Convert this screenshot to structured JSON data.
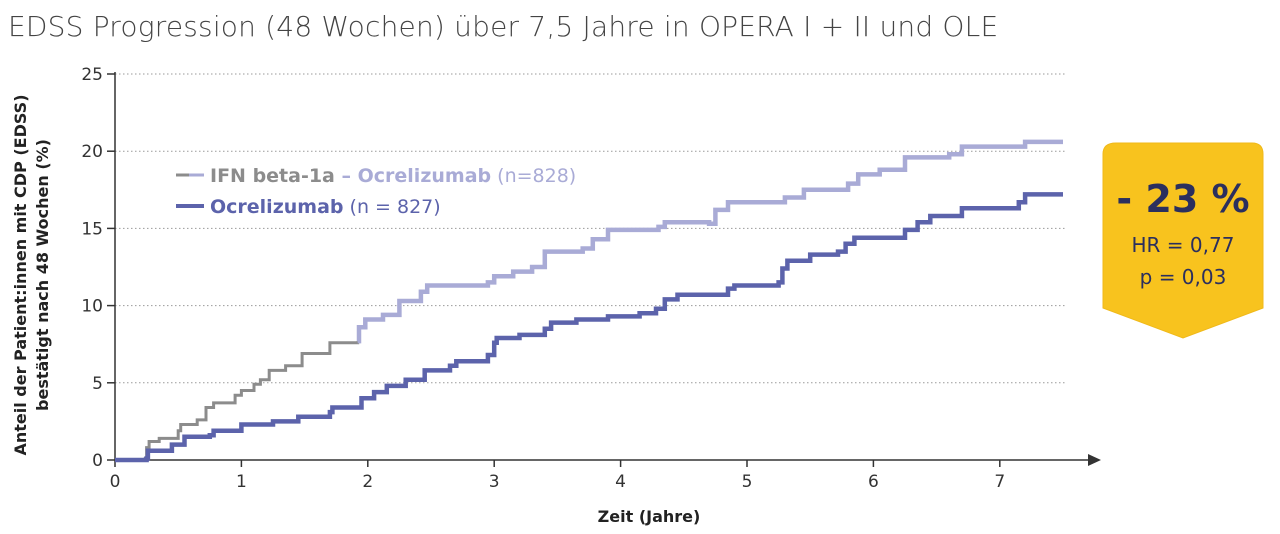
{
  "title": "EDSS Progression (48 Wochen) über 7,5 Jahre in OPERA I + II und OLE",
  "colors": {
    "ifn": "#8c8c8c",
    "ocrelizumab_switch": "#a9abd6",
    "ocrelizumab": "#5c63ab",
    "badge": "#f8c31e",
    "badge_text": "#2b2f5e",
    "grid": "#9a9a9a"
  },
  "legend": {
    "items": [
      {
        "parts": [
          {
            "text": "IFN beta-1a",
            "color": "#8c8c8c",
            "bold": true
          },
          {
            "text": " – Ocrelizumab",
            "color": "#a9abd6",
            "bold": true
          },
          {
            "text": " (n=828)",
            "color": "#a9abd6",
            "bold": false
          }
        ],
        "line_colors": [
          "#8c8c8c",
          "#a9abd6"
        ]
      },
      {
        "parts": [
          {
            "text": "Ocrelizumab",
            "color": "#5c63ab",
            "bold": true
          },
          {
            "text": " (n = 827)",
            "color": "#5c63ab",
            "bold": false
          }
        ],
        "line_colors": [
          "#5c63ab"
        ]
      }
    ]
  },
  "badge": {
    "reduction": "- 23 %",
    "hr": "HR = 0,77",
    "p": "p =  0,03"
  },
  "chart_data": {
    "type": "line",
    "step": true,
    "xlabel": "Zeit (Jahre)",
    "ylabel_lines": [
      "Anteil der Patient:innen mit CDP (EDSS)",
      "bestätigt nach 48 Wochen (%)"
    ],
    "xlim": [
      0,
      7.5
    ],
    "ylim": [
      0,
      25
    ],
    "x_ticks": [
      0,
      1,
      2,
      3,
      4,
      5,
      6,
      7
    ],
    "y_ticks": [
      0,
      5,
      10,
      15,
      20,
      25
    ],
    "grid": "horizontal-dotted",
    "legend_position": "top-left",
    "series": [
      {
        "name": "IFN beta-1a – Ocrelizumab (n=828)",
        "color": "#8c8c8c",
        "switch_at": 1.92,
        "switch_color": "#a9abd6",
        "points": [
          [
            0,
            0
          ],
          [
            0.24,
            0.1
          ],
          [
            0.25,
            0.8
          ],
          [
            0.27,
            1.2
          ],
          [
            0.35,
            1.4
          ],
          [
            0.5,
            1.9
          ],
          [
            0.52,
            2.3
          ],
          [
            0.65,
            2.6
          ],
          [
            0.72,
            3.4
          ],
          [
            0.78,
            3.7
          ],
          [
            0.95,
            4.2
          ],
          [
            1.0,
            4.5
          ],
          [
            1.1,
            4.9
          ],
          [
            1.15,
            5.2
          ],
          [
            1.22,
            5.8
          ],
          [
            1.35,
            6.1
          ],
          [
            1.48,
            6.9
          ],
          [
            1.7,
            7.6
          ],
          [
            1.92,
            7.7
          ],
          [
            1.93,
            8.6
          ],
          [
            1.98,
            9.1
          ],
          [
            2.12,
            9.4
          ],
          [
            2.25,
            10.3
          ],
          [
            2.42,
            10.9
          ],
          [
            2.47,
            11.3
          ],
          [
            2.95,
            11.5
          ],
          [
            3.0,
            11.9
          ],
          [
            3.15,
            12.2
          ],
          [
            3.3,
            12.5
          ],
          [
            3.4,
            13.5
          ],
          [
            3.7,
            13.7
          ],
          [
            3.78,
            14.3
          ],
          [
            3.9,
            14.9
          ],
          [
            4.3,
            15.1
          ],
          [
            4.35,
            15.4
          ],
          [
            4.7,
            15.3
          ],
          [
            4.75,
            16.2
          ],
          [
            4.85,
            16.7
          ],
          [
            5.3,
            17.0
          ],
          [
            5.45,
            17.5
          ],
          [
            5.8,
            17.9
          ],
          [
            5.88,
            18.5
          ],
          [
            6.05,
            18.8
          ],
          [
            6.25,
            19.6
          ],
          [
            6.6,
            19.8
          ],
          [
            6.7,
            20.3
          ],
          [
            7.2,
            20.6
          ],
          [
            7.5,
            20.6
          ]
        ]
      },
      {
        "name": "Ocrelizumab (n = 827)",
        "color": "#5c63ab",
        "points": [
          [
            0,
            0
          ],
          [
            0.25,
            0.1
          ],
          [
            0.26,
            0.6
          ],
          [
            0.45,
            1.0
          ],
          [
            0.55,
            1.5
          ],
          [
            0.75,
            1.6
          ],
          [
            0.78,
            1.9
          ],
          [
            1.0,
            2.3
          ],
          [
            1.25,
            2.5
          ],
          [
            1.45,
            2.8
          ],
          [
            1.7,
            3.1
          ],
          [
            1.72,
            3.4
          ],
          [
            1.95,
            4.0
          ],
          [
            2.05,
            4.4
          ],
          [
            2.15,
            4.8
          ],
          [
            2.3,
            5.2
          ],
          [
            2.45,
            5.8
          ],
          [
            2.65,
            6.1
          ],
          [
            2.7,
            6.4
          ],
          [
            2.95,
            6.8
          ],
          [
            3.0,
            7.6
          ],
          [
            3.02,
            7.9
          ],
          [
            3.2,
            8.1
          ],
          [
            3.4,
            8.5
          ],
          [
            3.45,
            8.9
          ],
          [
            3.65,
            9.1
          ],
          [
            3.9,
            9.3
          ],
          [
            4.15,
            9.5
          ],
          [
            4.28,
            9.8
          ],
          [
            4.35,
            10.4
          ],
          [
            4.45,
            10.7
          ],
          [
            4.75,
            10.7
          ],
          [
            4.85,
            11.1
          ],
          [
            4.9,
            11.3
          ],
          [
            5.25,
            11.5
          ],
          [
            5.28,
            12.4
          ],
          [
            5.32,
            12.9
          ],
          [
            5.5,
            13.3
          ],
          [
            5.72,
            13.5
          ],
          [
            5.78,
            14.0
          ],
          [
            5.85,
            14.4
          ],
          [
            6.25,
            14.9
          ],
          [
            6.35,
            15.4
          ],
          [
            6.45,
            15.8
          ],
          [
            6.7,
            16.3
          ],
          [
            7.15,
            16.7
          ],
          [
            7.2,
            17.2
          ],
          [
            7.5,
            17.2
          ]
        ]
      }
    ]
  }
}
